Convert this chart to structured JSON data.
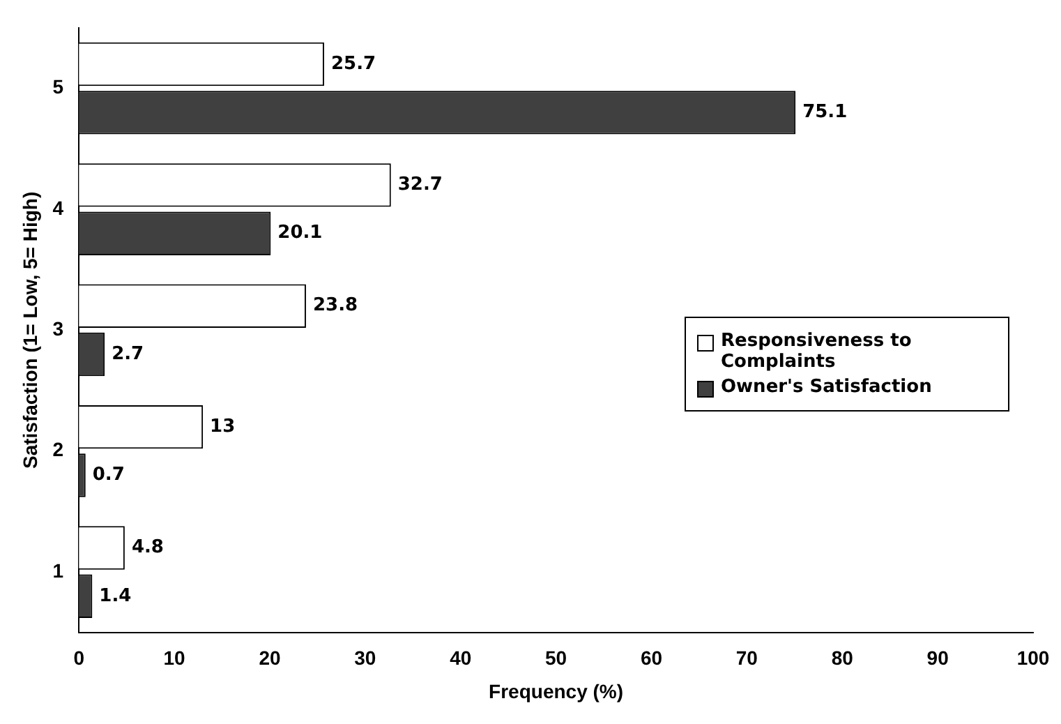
{
  "chart_data": {
    "type": "bar",
    "orientation": "horizontal",
    "xlabel": "Frequency (%)",
    "ylabel": "Satisfaction (1= Low, 5= High)",
    "categories": [
      "5",
      "4",
      "3",
      "2",
      "1"
    ],
    "series": [
      {
        "name": "Responsiveness to Complaints",
        "color": "#ffffff",
        "values": [
          25.7,
          32.7,
          23.8,
          13,
          4.8
        ]
      },
      {
        "name": "Owner's Satisfaction",
        "color": "#404040",
        "values": [
          75.1,
          20.1,
          2.7,
          0.7,
          1.4
        ]
      }
    ],
    "xlim": [
      0,
      100
    ],
    "xticks": [
      0,
      10,
      20,
      30,
      40,
      50,
      60,
      70,
      80,
      90,
      100
    ],
    "data_labels": true,
    "legend": "right",
    "grid": false
  }
}
